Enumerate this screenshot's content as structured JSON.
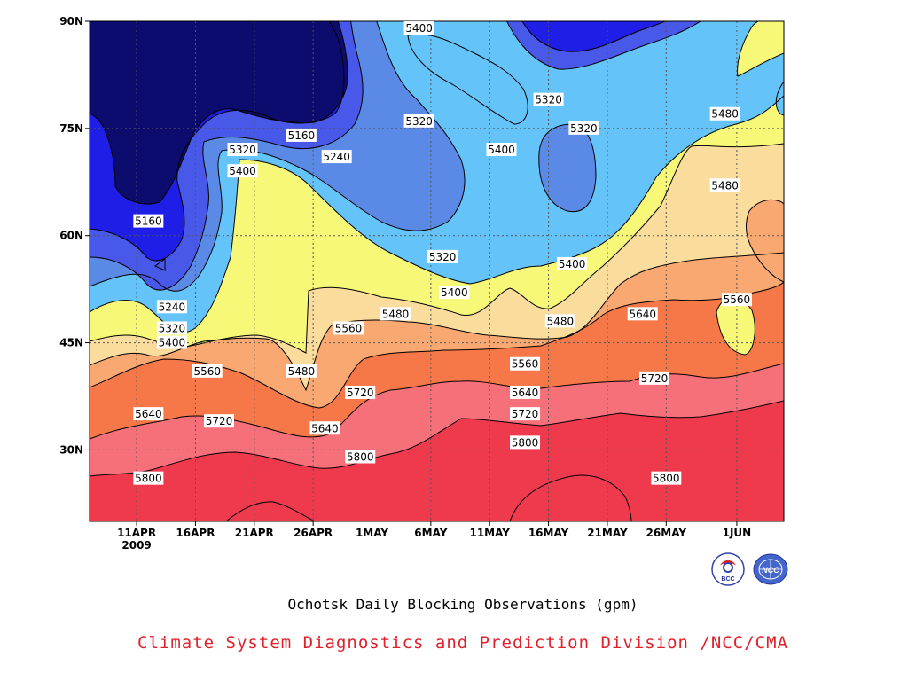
{
  "chart_data": {
    "type": "contour",
    "title": "Ochotsk Daily Blocking Observations (gpm)",
    "x_ticks": [
      "11APR",
      "16APR",
      "21APR",
      "26APR",
      "1MAY",
      "6MAY",
      "11MAY",
      "16MAY",
      "21MAY",
      "26MAY",
      "1JUN"
    ],
    "x_tick_year": "2009",
    "x_range": [
      "2009-04-07",
      "2009-06-05"
    ],
    "y_ticks": [
      "30N",
      "45N",
      "60N",
      "75N",
      "90N"
    ],
    "y_range": [
      20,
      90
    ],
    "grid": "dotted",
    "levels": [
      5160,
      5240,
      5320,
      5400,
      5480,
      5560,
      5640,
      5720,
      5800,
      5880
    ],
    "level_colors": [
      "#0c0c6e",
      "#1e1ee6",
      "#4858e8",
      "#5a8ae6",
      "#64c4fa",
      "#f8f878",
      "#fadc9c",
      "#f8a870",
      "#f67848",
      "#f6707a",
      "#ef3a4e"
    ],
    "contour_labels": [
      {
        "text": "5400",
        "x": "2009-05-05",
        "y": 89
      },
      {
        "text": "5480",
        "x": "2009-05-31",
        "y": 77
      },
      {
        "text": "5320",
        "x": "2009-05-16",
        "y": 79
      },
      {
        "text": "5160",
        "x": "2009-04-25",
        "y": 74
      },
      {
        "text": "5320",
        "x": "2009-04-20",
        "y": 72
      },
      {
        "text": "5240",
        "x": "2009-04-28",
        "y": 71
      },
      {
        "text": "5320",
        "x": "2009-05-05",
        "y": 76
      },
      {
        "text": "5320",
        "x": "2009-05-19",
        "y": 75
      },
      {
        "text": "5400",
        "x": "2009-05-12",
        "y": 72
      },
      {
        "text": "5400",
        "x": "2009-04-20",
        "y": 69
      },
      {
        "text": "5480",
        "x": "2009-05-31",
        "y": 67
      },
      {
        "text": "5160",
        "x": "2009-04-12",
        "y": 62
      },
      {
        "text": "5320",
        "x": "2009-05-07",
        "y": 57
      },
      {
        "text": "5400",
        "x": "2009-05-18",
        "y": 56
      },
      {
        "text": "5400",
        "x": "2009-05-08",
        "y": 52
      },
      {
        "text": "5560",
        "x": "2009-06-01",
        "y": 51
      },
      {
        "text": "5240",
        "x": "2009-04-14",
        "y": 50
      },
      {
        "text": "5480",
        "x": "2009-05-03",
        "y": 49
      },
      {
        "text": "5640",
        "x": "2009-05-24",
        "y": 49
      },
      {
        "text": "5320",
        "x": "2009-04-14",
        "y": 47
      },
      {
        "text": "5560",
        "x": "2009-04-29",
        "y": 47
      },
      {
        "text": "5480",
        "x": "2009-05-17",
        "y": 48
      },
      {
        "text": "5400",
        "x": "2009-04-14",
        "y": 45
      },
      {
        "text": "5560",
        "x": "2009-04-17",
        "y": 41
      },
      {
        "text": "5480",
        "x": "2009-04-25",
        "y": 41
      },
      {
        "text": "5560",
        "x": "2009-05-14",
        "y": 42
      },
      {
        "text": "5720",
        "x": "2009-05-25",
        "y": 40
      },
      {
        "text": "5720",
        "x": "2009-04-30",
        "y": 38
      },
      {
        "text": "5640",
        "x": "2009-05-14",
        "y": 38
      },
      {
        "text": "5640",
        "x": "2009-04-12",
        "y": 35
      },
      {
        "text": "5720",
        "x": "2009-04-18",
        "y": 34
      },
      {
        "text": "5720",
        "x": "2009-05-14",
        "y": 35
      },
      {
        "text": "5640",
        "x": "2009-04-27",
        "y": 33
      },
      {
        "text": "5800",
        "x": "2009-05-14",
        "y": 31
      },
      {
        "text": "5800",
        "x": "2009-04-30",
        "y": 29
      },
      {
        "text": "5800",
        "x": "2009-04-12",
        "y": 26
      },
      {
        "text": "5800",
        "x": "2009-05-26",
        "y": 26
      }
    ]
  },
  "footer": {
    "credit": "Climate System Diagnostics and Prediction Division /NCC/CMA"
  },
  "logos": {
    "bcc_text": "BCC",
    "ncc_text": "NCC"
  }
}
